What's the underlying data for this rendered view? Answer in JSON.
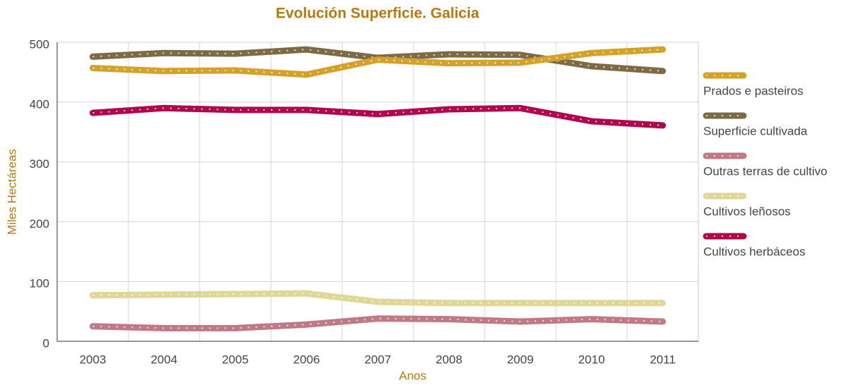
{
  "chart_data": {
    "type": "line",
    "title": "Evolución Superficie. Galicia",
    "x_label": "Anos",
    "y_label": "Miles Hectáreas",
    "categories": [
      "2003",
      "2004",
      "2005",
      "2006",
      "2007",
      "2008",
      "2009",
      "2010",
      "2011"
    ],
    "ylim": [
      0,
      500
    ],
    "yticks": [
      0,
      100,
      200,
      300,
      400,
      500
    ],
    "grid": true,
    "legend": "right",
    "series": [
      {
        "name": "Prados e pasteiros",
        "color": "#d4a22b",
        "values": [
          457,
          452,
          453,
          446,
          471,
          465,
          466,
          482,
          488
        ]
      },
      {
        "name": "Superficie cultivada",
        "color": "#7d6b45",
        "values": [
          476,
          482,
          481,
          488,
          474,
          480,
          479,
          460,
          452
        ]
      },
      {
        "name": "Outras terras de cultivo",
        "color": "#c07a86",
        "values": [
          25,
          22,
          22,
          28,
          38,
          37,
          33,
          37,
          33
        ]
      },
      {
        "name": "Cultivos leñosos",
        "color": "#e0d796",
        "values": [
          77,
          78,
          79,
          80,
          66,
          64,
          64,
          64,
          64
        ]
      },
      {
        "name": "Cultivos herbáceos",
        "color": "#b0084f",
        "values": [
          382,
          390,
          387,
          387,
          380,
          388,
          390,
          368,
          361
        ]
      }
    ]
  }
}
